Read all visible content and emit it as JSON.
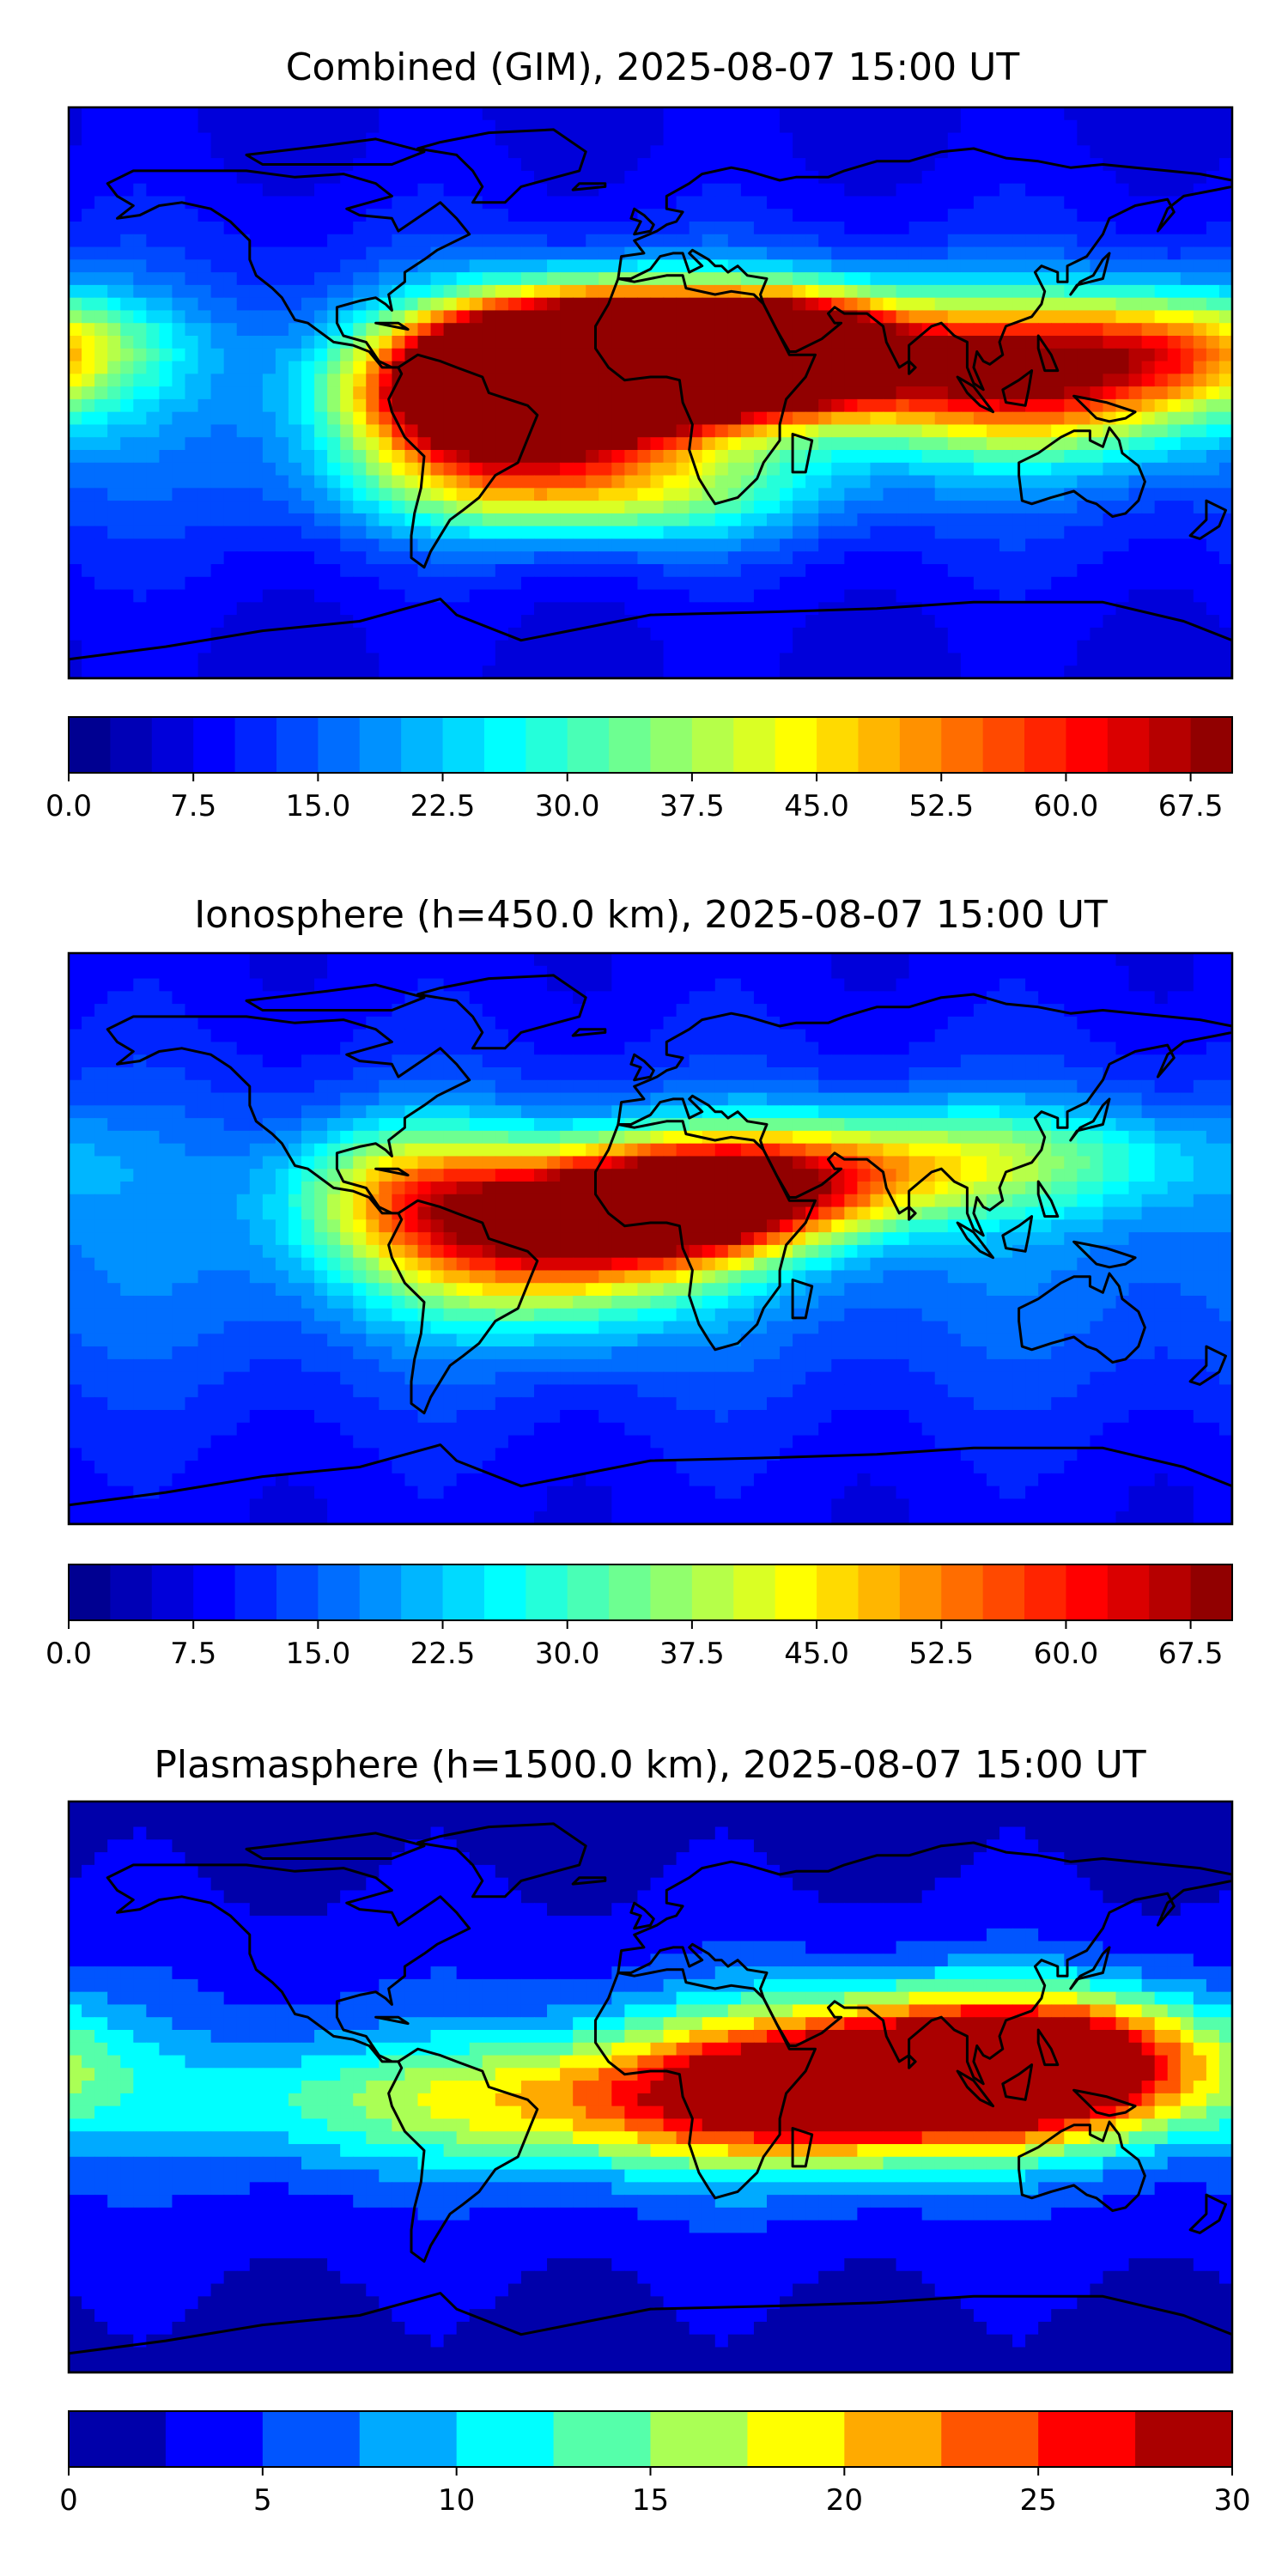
{
  "panels": [
    {
      "title": "Combined (GIM), 2025-08-07 15:00 UT",
      "colorbar": {
        "min": 0,
        "max": 70,
        "step": 2.5,
        "tick_labels": [
          "0.0",
          "7.5",
          "15.0",
          "22.5",
          "30.0",
          "37.5",
          "45.0",
          "52.5",
          "60.0",
          "67.5"
        ],
        "tick_values": [
          0,
          7.5,
          15,
          22.5,
          30,
          37.5,
          45,
          52.5,
          60,
          67.5
        ]
      },
      "hotspots": [
        {
          "lon": 0,
          "lat": 10,
          "amp": 1.0,
          "slon": 36,
          "slat": 14
        },
        {
          "lon": 45,
          "lat": 14,
          "amp": 0.7,
          "slon": 18,
          "slat": 10
        },
        {
          "lon": -50,
          "lat": -2,
          "amp": 0.85,
          "slon": 30,
          "slat": 16
        },
        {
          "lon": -25,
          "lat": 8,
          "amp": 0.8,
          "slon": 30,
          "slat": 14
        },
        {
          "lon": 60,
          "lat": 12,
          "amp": 0.52,
          "slon": 55,
          "slat": 14
        },
        {
          "lon": 120,
          "lat": 2,
          "amp": 0.5,
          "slon": 40,
          "slat": 16
        },
        {
          "lon": 165,
          "lat": 15,
          "amp": 0.36,
          "slon": 30,
          "slat": 12
        },
        {
          "lon": -20,
          "lat": -30,
          "amp": 0.42,
          "slon": 45,
          "slat": 12
        }
      ],
      "background": 0.16
    },
    {
      "title": "Ionosphere  (h=450.0 km), 2025-08-07 15:00 UT",
      "colorbar": {
        "min": 0,
        "max": 70,
        "step": 2.5,
        "tick_labels": [
          "0.0",
          "7.5",
          "15.0",
          "22.5",
          "30.0",
          "37.5",
          "45.0",
          "52.5",
          "60.0",
          "67.5"
        ],
        "tick_values": [
          0,
          7.5,
          15,
          22.5,
          30,
          37.5,
          45,
          52.5,
          60,
          67.5
        ]
      },
      "hotspots": [
        {
          "lon": 5,
          "lat": 10,
          "amp": 0.78,
          "slon": 30,
          "slat": 12
        },
        {
          "lon": -35,
          "lat": 0,
          "amp": 0.6,
          "slon": 35,
          "slat": 18
        },
        {
          "lon": 40,
          "lat": 18,
          "amp": 0.45,
          "slon": 35,
          "slat": 12
        },
        {
          "lon": -75,
          "lat": 15,
          "amp": 0.35,
          "slon": 25,
          "slat": 15
        },
        {
          "lon": 100,
          "lat": 25,
          "amp": 0.3,
          "slon": 50,
          "slat": 12
        }
      ],
      "background": 0.18
    },
    {
      "title": "Plasmasphere (h=1500.0 km), 2025-08-07 15:00 UT",
      "colorbar": {
        "min": 0,
        "max": 30,
        "step": 2.5,
        "tick_labels": [
          "0",
          "5",
          "10",
          "15",
          "20",
          "25",
          "30"
        ],
        "tick_values": [
          0,
          5,
          10,
          15,
          20,
          25,
          30
        ]
      },
      "hotspots": [
        {
          "lon": 95,
          "lat": 5,
          "amp": 0.75,
          "slon": 45,
          "slat": 16
        },
        {
          "lon": 130,
          "lat": 8,
          "amp": 0.55,
          "slon": 35,
          "slat": 15
        },
        {
          "lon": -30,
          "lat": -5,
          "amp": 0.42,
          "slon": 80,
          "slat": 14
        },
        {
          "lon": 40,
          "lat": 0,
          "amp": 0.45,
          "slon": 45,
          "slat": 18
        }
      ],
      "background": 0.12
    }
  ],
  "palette": {
    "jet_stops": [
      "#00007f",
      "#0000ff",
      "#007fff",
      "#00ffff",
      "#7fff7f",
      "#ffff00",
      "#ff7f00",
      "#ff0000",
      "#7f0000"
    ],
    "coastline": "#000000"
  }
}
